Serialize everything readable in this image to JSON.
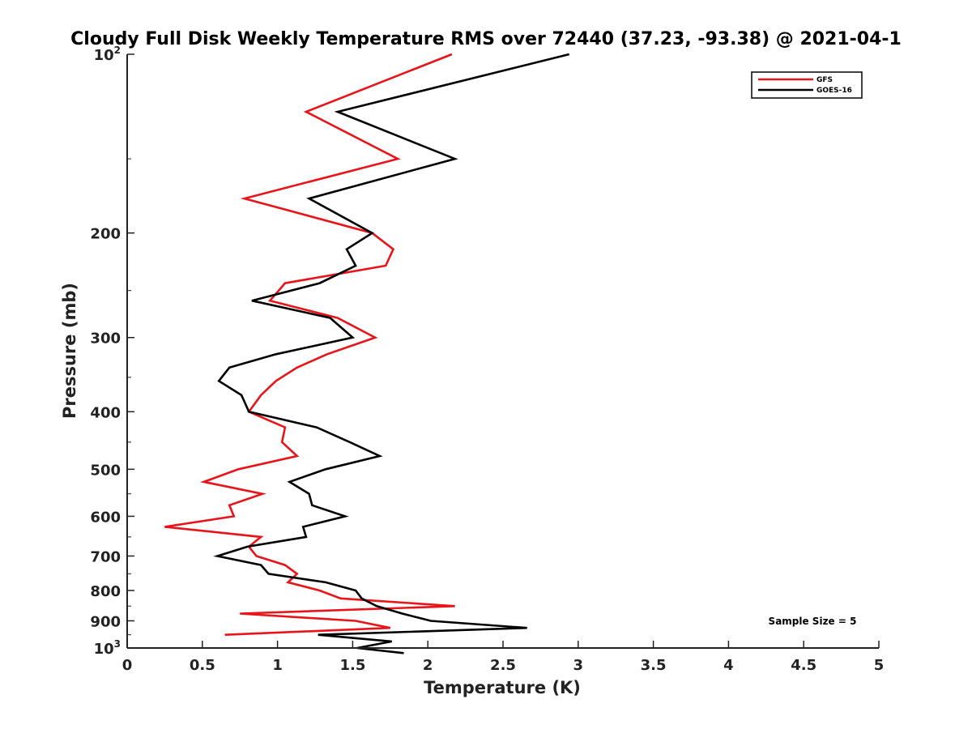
{
  "chart_data": {
    "type": "line",
    "title": "Cloudy Full Disk Weekly Temperature RMS over 72440 (37.23, -93.38) @ 2021-04-1",
    "xlabel": "Temperature (K)",
    "ylabel": "Pressure (mb)",
    "xlim": [
      0,
      5
    ],
    "ylim": [
      100,
      1000
    ],
    "y_scale": "log",
    "y_reversed": true,
    "grid": false,
    "legend_position": "top-right",
    "x_ticks": [
      {
        "value": 0,
        "label": "0"
      },
      {
        "value": 0.5,
        "label": "0.5"
      },
      {
        "value": 1,
        "label": "1"
      },
      {
        "value": 1.5,
        "label": "1.5"
      },
      {
        "value": 2,
        "label": "2"
      },
      {
        "value": 2.5,
        "label": "2.5"
      },
      {
        "value": 3,
        "label": "3"
      },
      {
        "value": 3.5,
        "label": "3.5"
      },
      {
        "value": 4,
        "label": "4"
      },
      {
        "value": 4.5,
        "label": "4.5"
      },
      {
        "value": 5,
        "label": "5"
      }
    ],
    "y_ticks": [
      {
        "value": 100,
        "label": "10",
        "sup": "2"
      },
      {
        "value": 200,
        "label": "200"
      },
      {
        "value": 300,
        "label": "300"
      },
      {
        "value": 400,
        "label": "400"
      },
      {
        "value": 500,
        "label": "500"
      },
      {
        "value": 600,
        "label": "600"
      },
      {
        "value": 700,
        "label": "700"
      },
      {
        "value": 800,
        "label": "800"
      },
      {
        "value": 900,
        "label": "900"
      },
      {
        "value": 1000,
        "label": "10",
        "sup": "3"
      }
    ],
    "annotation": "Sample Size = 5",
    "series": [
      {
        "name": "GFS",
        "color": "#e8141a",
        "points": [
          [
            2.16,
            100
          ],
          [
            1.19,
            125
          ],
          [
            1.8,
            150
          ],
          [
            0.78,
            175
          ],
          [
            1.63,
            200
          ],
          [
            1.77,
            213
          ],
          [
            1.72,
            227
          ],
          [
            1.05,
            243
          ],
          [
            0.95,
            260
          ],
          [
            1.4,
            278
          ],
          [
            1.65,
            300
          ],
          [
            1.33,
            320
          ],
          [
            1.13,
            337
          ],
          [
            0.99,
            355
          ],
          [
            0.89,
            375
          ],
          [
            0.81,
            400
          ],
          [
            1.05,
            425
          ],
          [
            1.03,
            450
          ],
          [
            1.13,
            475
          ],
          [
            0.74,
            500
          ],
          [
            0.51,
            525
          ],
          [
            0.9,
            550
          ],
          [
            0.68,
            575
          ],
          [
            0.71,
            600
          ],
          [
            0.25,
            625
          ],
          [
            0.89,
            650
          ],
          [
            0.81,
            675
          ],
          [
            0.86,
            700
          ],
          [
            1.05,
            725
          ],
          [
            1.13,
            750
          ],
          [
            1.07,
            775
          ],
          [
            1.28,
            800
          ],
          [
            1.42,
            825
          ],
          [
            2.18,
            850
          ],
          [
            0.75,
            875
          ],
          [
            1.52,
            900
          ],
          [
            1.75,
            925
          ],
          [
            0.65,
            950
          ]
        ]
      },
      {
        "name": "GOES-16",
        "color": "#000000",
        "points": [
          [
            2.94,
            100
          ],
          [
            1.4,
            125
          ],
          [
            2.18,
            150
          ],
          [
            1.21,
            175
          ],
          [
            1.63,
            200
          ],
          [
            1.46,
            213
          ],
          [
            1.52,
            227
          ],
          [
            1.28,
            243
          ],
          [
            0.83,
            260
          ],
          [
            1.35,
            278
          ],
          [
            1.5,
            300
          ],
          [
            0.99,
            320
          ],
          [
            0.68,
            337
          ],
          [
            0.61,
            355
          ],
          [
            0.76,
            375
          ],
          [
            0.81,
            400
          ],
          [
            1.26,
            425
          ],
          [
            1.48,
            450
          ],
          [
            1.68,
            475
          ],
          [
            1.32,
            500
          ],
          [
            1.08,
            525
          ],
          [
            1.21,
            550
          ],
          [
            1.23,
            575
          ],
          [
            1.45,
            600
          ],
          [
            1.17,
            625
          ],
          [
            1.19,
            650
          ],
          [
            0.8,
            675
          ],
          [
            0.6,
            700
          ],
          [
            0.89,
            725
          ],
          [
            0.94,
            750
          ],
          [
            1.32,
            775
          ],
          [
            1.52,
            800
          ],
          [
            1.56,
            825
          ],
          [
            1.66,
            850
          ],
          [
            1.83,
            875
          ],
          [
            2.02,
            900
          ],
          [
            2.66,
            925
          ],
          [
            1.27,
            950
          ],
          [
            1.76,
            975
          ],
          [
            1.53,
            1000
          ],
          [
            1.84,
            1020
          ]
        ]
      }
    ]
  }
}
